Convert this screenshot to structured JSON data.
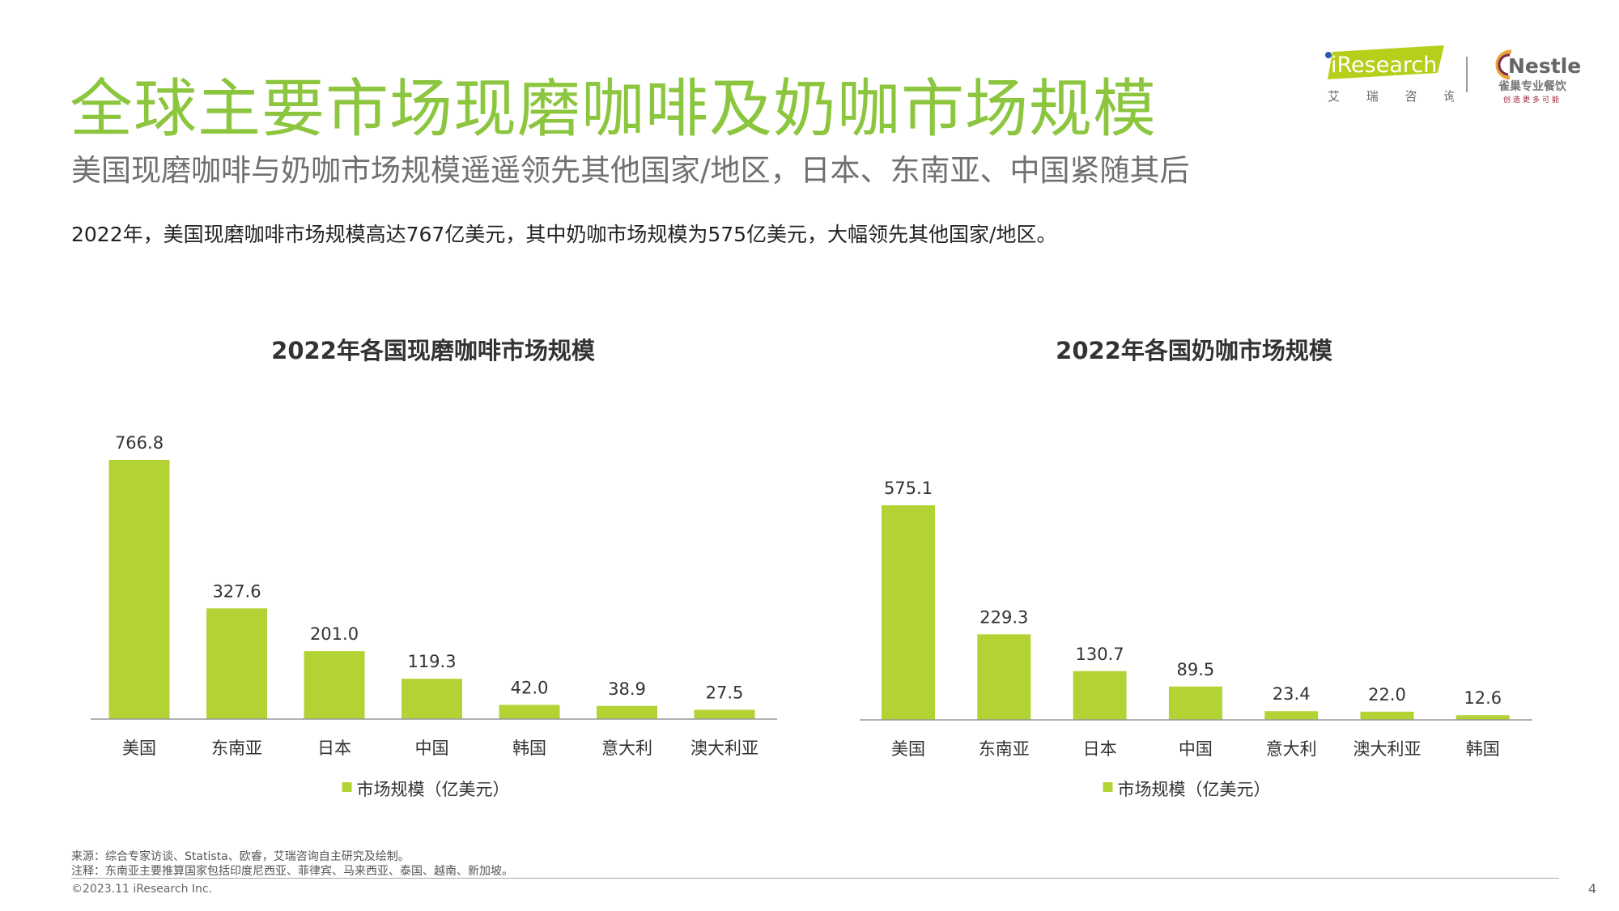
{
  "header": {
    "title": "全球主要市场现磨咖啡及奶咖市场规模",
    "subtitle": "美国现磨咖啡与奶咖市场规模遥遥领先其他国家/地区，日本、东南亚、中国紧随其后",
    "summary": "2022年，美国现磨咖啡市场规模高达767亿美元，其中奶咖市场规模为575亿美元，大幅领先其他国家/地区。",
    "logo_iresearch": "iResearch",
    "logo_iresearch_cn": "艾 瑞 咨 询",
    "logo_nestle": "Nestle",
    "logo_nestle_cn": "雀巢专业餐饮",
    "logo_nestle_slogan": "创造更多可能"
  },
  "colors": {
    "accent": "#8cc63f",
    "bar": "#b3d335",
    "logo_bg": "#b5cf1a",
    "nestle_red": "#a0223a"
  },
  "chart_data": [
    {
      "type": "bar",
      "title": "2022年各国现磨咖啡市场规模",
      "categories": [
        "美国",
        "东南亚",
        "日本",
        "中国",
        "韩国",
        "意大利",
        "澳大利亚"
      ],
      "values": [
        766.8,
        327.6,
        201.0,
        119.3,
        42.0,
        38.9,
        27.5
      ],
      "labels": [
        "766.8",
        "327.6",
        "201.0",
        "119.3",
        "42.0",
        "38.9",
        "27.5"
      ],
      "legend": "市场规模（亿美元）",
      "legend_position": "bottom",
      "ylim": [
        0,
        800
      ]
    },
    {
      "type": "bar",
      "title": "2022年各国奶咖市场规模",
      "categories": [
        "美国",
        "东南亚",
        "日本",
        "中国",
        "意大利",
        "澳大利亚",
        "韩国"
      ],
      "values": [
        575.1,
        229.3,
        130.7,
        89.5,
        23.4,
        22.0,
        12.6
      ],
      "labels": [
        "575.1",
        "229.3",
        "130.7",
        "89.5",
        "23.4",
        "22.0",
        "12.6"
      ],
      "legend": "市场规模（亿美元）",
      "legend_position": "bottom",
      "ylim": [
        0,
        600
      ]
    }
  ],
  "footer": {
    "source": "来源：综合专家访谈、Statista、欧睿，艾瑞咨询自主研究及绘制。",
    "note": "注释：东南亚主要推算国家包括印度尼西亚、菲律宾、马来西亚、泰国、越南、新加坡。",
    "copyright": "©2023.11 iResearch Inc.",
    "page": "4"
  }
}
